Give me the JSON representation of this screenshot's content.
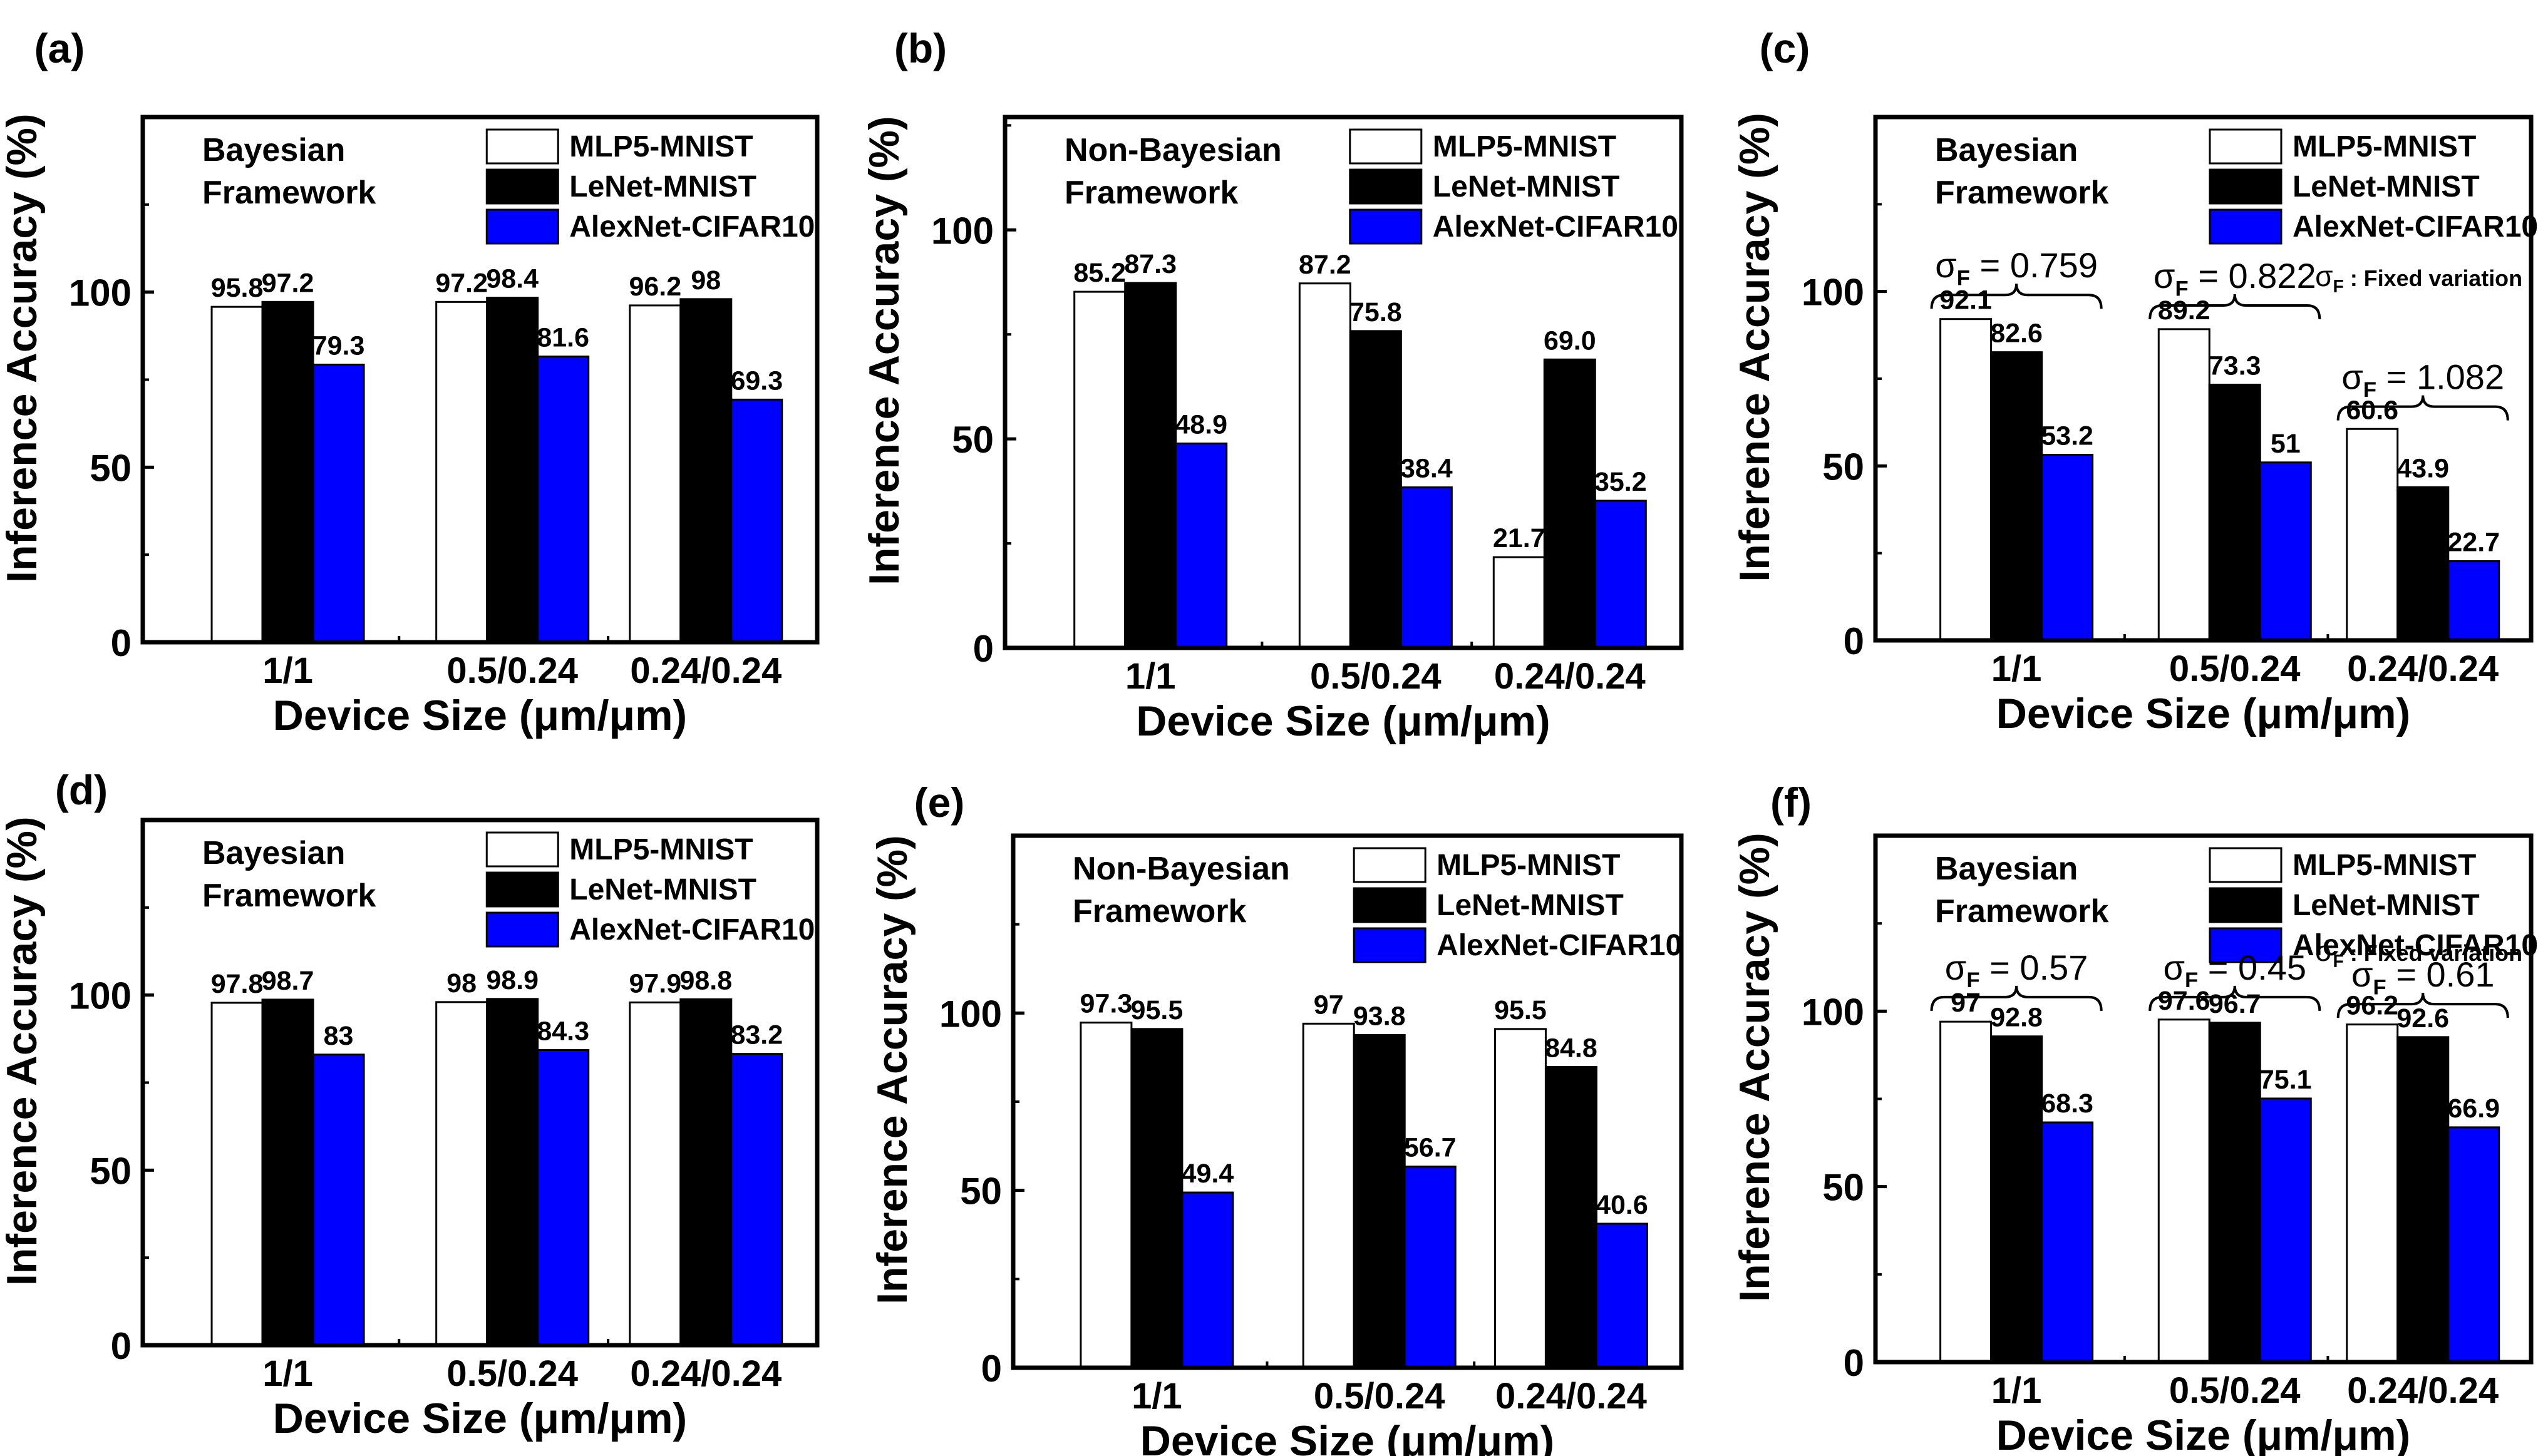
{
  "figure": {
    "series_names": [
      "MLP5-MNIST",
      "LeNet-MNIST",
      "AlexNet-CIFAR10"
    ],
    "series_colors": [
      "#ffffff",
      "#000000",
      "#0000ff"
    ]
  },
  "chart_data": [
    {
      "panel": "(a)",
      "type": "bar",
      "framework": [
        "Bayesian",
        "Framework"
      ],
      "categories": [
        "1/1",
        "0.5/0.24",
        "0.24/0.24"
      ],
      "series": [
        {
          "name": "MLP5-MNIST",
          "values": [
            95.8,
            97.2,
            96.2
          ],
          "labels": [
            "95.8",
            "97.2",
            "96.2"
          ]
        },
        {
          "name": "LeNet-MNIST",
          "values": [
            97.2,
            98.4,
            98
          ],
          "labels": [
            "97.2",
            "98.4",
            "98"
          ]
        },
        {
          "name": "AlexNet-CIFAR10",
          "values": [
            79.3,
            81.6,
            69.3
          ],
          "labels": [
            "79.3",
            "81.6",
            "69.3"
          ]
        }
      ],
      "xlabel": "Device Size (μm/μm)",
      "ylabel": "Inference Accuracy (%)",
      "ylim": [
        0,
        150
      ],
      "yticks": [
        0,
        50,
        100
      ],
      "legend": "top-right",
      "sigma": [],
      "sigma_note": null
    },
    {
      "panel": "(b)",
      "type": "bar",
      "framework": [
        "Non-Bayesian",
        "Framework"
      ],
      "categories": [
        "1/1",
        "0.5/0.24",
        "0.24/0.24"
      ],
      "series": [
        {
          "name": "MLP5-MNIST",
          "values": [
            85.2,
            87.2,
            21.7
          ],
          "labels": [
            "85.2",
            "87.2",
            "21.7"
          ]
        },
        {
          "name": "LeNet-MNIST",
          "values": [
            87.3,
            75.8,
            69.0
          ],
          "labels": [
            "87.3",
            "75.8",
            "69.0"
          ]
        },
        {
          "name": "AlexNet-CIFAR10",
          "values": [
            48.9,
            38.4,
            35.2
          ],
          "labels": [
            "48.9",
            "38.4",
            "35.2"
          ]
        }
      ],
      "xlabel": "Device Size (μm/μm)",
      "ylabel": "Inference Accuracy (%)",
      "ylim": [
        0,
        127
      ],
      "yticks": [
        0,
        50,
        100
      ],
      "legend": "top-right",
      "sigma": [],
      "sigma_note": null
    },
    {
      "panel": "(c)",
      "type": "bar",
      "framework": [
        "Bayesian",
        "Framework"
      ],
      "categories": [
        "1/1",
        "0.5/0.24",
        "0.24/0.24"
      ],
      "series": [
        {
          "name": "MLP5-MNIST",
          "values": [
            92.1,
            89.2,
            60.6
          ],
          "labels": [
            "92.1",
            "89.2",
            "60.6"
          ]
        },
        {
          "name": "LeNet-MNIST",
          "values": [
            82.6,
            73.3,
            43.9
          ],
          "labels": [
            "82.6",
            "73.3",
            "43.9"
          ]
        },
        {
          "name": "AlexNet-CIFAR10",
          "values": [
            53.2,
            51,
            22.7
          ],
          "labels": [
            "53.2",
            "51",
            "22.7"
          ]
        }
      ],
      "xlabel": "Device Size (μm/μm)",
      "ylabel": "Inference Accuracy (%)",
      "ylim": [
        0,
        150
      ],
      "yticks": [
        0,
        50,
        100
      ],
      "legend": "top-right",
      "sigma": [
        {
          "prefix": "σ",
          "sub": "F",
          "value": " = 0.759",
          "level": 99
        },
        {
          "prefix": "σ",
          "sub": "F",
          "value": " = 0.822",
          "level": 96
        },
        {
          "prefix": "σ",
          "sub": "F",
          "value": " = 1.082",
          "level": 67
        }
      ],
      "sigma_note": {
        "prefix": "σ",
        "sub": "F",
        "text": " : Fixed variation"
      }
    },
    {
      "panel": "(d)",
      "type": "bar",
      "framework": [
        "Bayesian",
        "Framework"
      ],
      "categories": [
        "1/1",
        "0.5/0.24",
        "0.24/0.24"
      ],
      "series": [
        {
          "name": "MLP5-MNIST",
          "values": [
            97.8,
            98,
            97.9
          ],
          "labels": [
            "97.8",
            "98",
            "97.9"
          ]
        },
        {
          "name": "LeNet-MNIST",
          "values": [
            98.7,
            98.9,
            98.8
          ],
          "labels": [
            "98.7",
            "98.9",
            "98.8"
          ]
        },
        {
          "name": "AlexNet-CIFAR10",
          "values": [
            83,
            84.3,
            83.2
          ],
          "labels": [
            "83",
            "84.3",
            "83.2"
          ]
        }
      ],
      "xlabel": "Device Size (μm/μm)",
      "ylabel": "Inference Accuracy (%)",
      "ylim": [
        0,
        150
      ],
      "yticks": [
        0,
        50,
        100
      ],
      "legend": "top-right",
      "sigma": [],
      "sigma_note": null
    },
    {
      "panel": "(e)",
      "type": "bar",
      "framework": [
        "Non-Bayesian",
        "Framework"
      ],
      "categories": [
        "1/1",
        "0.5/0.24",
        "0.24/0.24"
      ],
      "series": [
        {
          "name": "MLP5-MNIST",
          "values": [
            97.3,
            97,
            95.5
          ],
          "labels": [
            "97.3",
            "97",
            "95.5"
          ]
        },
        {
          "name": "LeNet-MNIST",
          "values": [
            95.5,
            93.8,
            84.8
          ],
          "labels": [
            "95.5",
            "93.8",
            "84.8"
          ]
        },
        {
          "name": "AlexNet-CIFAR10",
          "values": [
            49.4,
            56.7,
            40.6
          ],
          "labels": [
            "49.4",
            "56.7",
            "40.6"
          ]
        }
      ],
      "xlabel": "Device Size (μm/μm)",
      "ylabel": "Inference Accuracy (%)",
      "ylim": [
        0,
        150
      ],
      "yticks": [
        0,
        50,
        100
      ],
      "legend": "top-right",
      "sigma": [],
      "sigma_note": null
    },
    {
      "panel": "(f)",
      "type": "bar",
      "framework": [
        "Bayesian",
        "Framework"
      ],
      "categories": [
        "1/1",
        "0.5/0.24",
        "0.24/0.24"
      ],
      "series": [
        {
          "name": "MLP5-MNIST",
          "values": [
            97,
            97.6,
            96.2
          ],
          "labels": [
            "97",
            "97.6",
            "96.2"
          ]
        },
        {
          "name": "LeNet-MNIST",
          "values": [
            92.8,
            96.7,
            92.6
          ],
          "labels": [
            "92.8",
            "96.7",
            "92.6"
          ]
        },
        {
          "name": "AlexNet-CIFAR10",
          "values": [
            68.3,
            75.1,
            66.9
          ],
          "labels": [
            "68.3",
            "75.1",
            "66.9"
          ]
        }
      ],
      "xlabel": "Device Size (μm/μm)",
      "ylabel": "Inference Accuracy (%)",
      "ylim": [
        0,
        150
      ],
      "yticks": [
        0,
        50,
        100
      ],
      "legend": "top-right",
      "sigma": [
        {
          "prefix": "σ",
          "sub": "F",
          "value": " = 0.57",
          "level": 104
        },
        {
          "prefix": "σ",
          "sub": "F",
          "value": " = 0.45",
          "level": 104
        },
        {
          "prefix": "σ",
          "sub": "F",
          "value": " = 0.61",
          "level": 102
        }
      ],
      "sigma_note": {
        "prefix": "σ",
        "sub": "F",
        "text": " : Fixed variation"
      }
    }
  ]
}
